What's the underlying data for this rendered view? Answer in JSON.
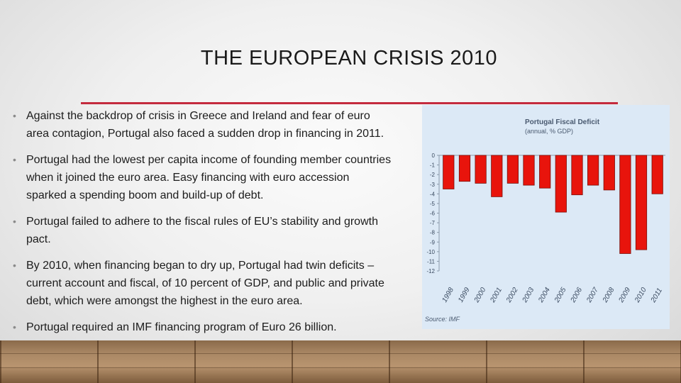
{
  "slide": {
    "title": "THE EUROPEAN CRISIS 2010",
    "bullets": [
      [
        "Against the backdrop of crisis in Greece and Ireland and fear of euro",
        "area contagion, Portugal also faced a sudden drop in financing in 2011."
      ],
      [
        "Portugal had the lowest per capita income of founding member countries",
        "when it joined the euro area. Easy financing with euro accession",
        "sparked a spending boom and build-up of debt."
      ],
      [
        "Portugal failed to adhere to the fiscal rules of EU’s stability and growth",
        "pact."
      ],
      [
        "By 2010, when financing began to dry up, Portugal had twin deficits –",
        "current account and fiscal, of 10 percent of GDP, and public and private",
        "debt, which were amongst the highest in the euro area."
      ],
      [
        "Portugal required an IMF financing program of Euro 26 billion."
      ]
    ]
  },
  "chart_data": {
    "type": "bar",
    "title": "Portugal Fiscal Deficit",
    "subtitle": "(annual, % GDP)",
    "source": "Source: IMF",
    "categories": [
      "1998",
      "1999",
      "2000",
      "2001",
      "2002",
      "2003",
      "2004",
      "2005",
      "2006",
      "2007",
      "2008",
      "2009",
      "2010",
      "2011"
    ],
    "values": [
      -3.5,
      -2.7,
      -2.9,
      -4.3,
      -2.9,
      -3.1,
      -3.4,
      -5.9,
      -4.1,
      -3.1,
      -3.6,
      -10.2,
      -9.8,
      -4.0
    ],
    "ylim": [
      -12,
      0
    ],
    "yticks": [
      "0",
      "-1",
      "-2",
      "-3",
      "-4",
      "-5",
      "-6",
      "-7",
      "-8",
      "-9",
      "-10",
      "-11",
      "-12"
    ],
    "bar_color": "#e8140c",
    "bar_edge_color": "#7a0f0a"
  }
}
